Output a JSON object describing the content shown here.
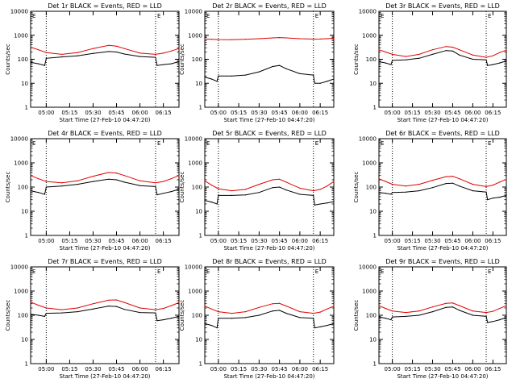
{
  "colors": {
    "events": "#000000",
    "lld": "#e00000",
    "background": "#ffffff"
  },
  "chart_data": [
    {
      "type": "line",
      "title": "Det 1r BLACK = Events, RED = LLD",
      "xlabel": "Start Time (27-Feb-10 04:47:20)",
      "ylabel": "Counts/sec",
      "yscale": "log",
      "ylim": [
        1,
        10000
      ],
      "xlim": [
        "04:50",
        "06:25"
      ],
      "x_ticks": [
        "05:00",
        "05:15",
        "05:30",
        "05:45",
        "06:00",
        "06:15"
      ],
      "y_ticks": [
        "1",
        "10",
        "100",
        "1000",
        "10000"
      ],
      "vlines": [
        "05:00",
        "06:10"
      ],
      "corner_marks": [
        "E",
        "E"
      ],
      "series": [
        {
          "color": "black",
          "x": [
            "04:50",
            "04:55",
            "04:59",
            "05:00",
            "05:10",
            "05:20",
            "05:30",
            "05:40",
            "05:45",
            "05:50",
            "06:00",
            "06:10",
            "06:11",
            "06:15",
            "06:20",
            "06:25"
          ],
          "values": [
            75,
            65,
            55,
            110,
            125,
            140,
            175,
            210,
            200,
            165,
            130,
            120,
            55,
            60,
            65,
            80
          ]
        },
        {
          "color": "red",
          "x": [
            "04:50",
            "04:55",
            "05:00",
            "05:10",
            "05:20",
            "05:30",
            "05:40",
            "05:45",
            "05:50",
            "06:00",
            "06:10",
            "06:15",
            "06:20",
            "06:25"
          ],
          "values": [
            320,
            250,
            190,
            160,
            190,
            280,
            380,
            350,
            280,
            180,
            160,
            180,
            220,
            280
          ]
        }
      ]
    },
    {
      "type": "line",
      "title": "Det 2r BLACK = Events, RED = LLD",
      "xlabel": "Start Time (27-Feb-10 04:47:20)",
      "ylabel": "Counts/sec",
      "yscale": "log",
      "ylim": [
        1,
        10000
      ],
      "xlim": [
        "04:50",
        "06:25"
      ],
      "x_ticks": [
        "05:00",
        "05:15",
        "05:30",
        "05:45",
        "06:00",
        "06:15"
      ],
      "y_ticks": [
        "1",
        "10",
        "100",
        "1000",
        "10000"
      ],
      "vlines": [
        "05:00",
        "06:10"
      ],
      "corner_marks": [
        "E",
        "E"
      ],
      "series": [
        {
          "color": "black",
          "x": [
            "04:50",
            "04:55",
            "04:59",
            "05:00",
            "05:10",
            "05:20",
            "05:30",
            "05:40",
            "05:45",
            "05:50",
            "06:00",
            "06:10",
            "06:11",
            "06:15",
            "06:20",
            "06:25"
          ],
          "values": [
            18,
            15,
            12,
            20,
            20,
            22,
            30,
            50,
            55,
            40,
            25,
            22,
            10,
            10,
            12,
            15
          ]
        },
        {
          "color": "red",
          "x": [
            "04:50",
            "04:55",
            "05:00",
            "05:10",
            "05:20",
            "05:30",
            "05:40",
            "05:45",
            "05:50",
            "06:00",
            "06:10",
            "06:15",
            "06:20",
            "06:25"
          ],
          "values": [
            700,
            680,
            660,
            650,
            680,
            720,
            780,
            800,
            780,
            720,
            690,
            700,
            720,
            750
          ]
        }
      ]
    },
    {
      "type": "line",
      "title": "Det 3r BLACK = Events, RED = LLD",
      "xlabel": "Start Time (27-Feb-10 04:47:20)",
      "ylabel": "Counts/sec",
      "yscale": "log",
      "ylim": [
        1,
        10000
      ],
      "xlim": [
        "04:50",
        "06:25"
      ],
      "x_ticks": [
        "05:00",
        "05:15",
        "05:30",
        "05:45",
        "06:00",
        "06:15"
      ],
      "y_ticks": [
        "1",
        "10",
        "100",
        "1000",
        "10000"
      ],
      "vlines": [
        "05:00",
        "06:10"
      ],
      "corner_marks": [
        "E",
        "E"
      ],
      "series": [
        {
          "color": "black",
          "x": [
            "04:50",
            "04:55",
            "04:59",
            "05:00",
            "05:10",
            "05:20",
            "05:30",
            "05:40",
            "05:45",
            "05:50",
            "06:00",
            "06:10",
            "06:11",
            "06:15",
            "06:20",
            "06:25"
          ],
          "values": [
            80,
            70,
            60,
            90,
            95,
            110,
            160,
            230,
            220,
            150,
            100,
            95,
            55,
            60,
            70,
            85
          ]
        },
        {
          "color": "red",
          "x": [
            "04:50",
            "04:55",
            "05:00",
            "05:10",
            "05:20",
            "05:30",
            "05:40",
            "05:45",
            "05:50",
            "06:00",
            "06:10",
            "06:15",
            "06:20",
            "06:25"
          ],
          "values": [
            250,
            200,
            160,
            130,
            160,
            250,
            340,
            320,
            250,
            150,
            120,
            140,
            190,
            240
          ]
        }
      ]
    },
    {
      "type": "line",
      "title": "Det 4r BLACK = Events, RED = LLD",
      "xlabel": "Start Time (27-Feb-10 04:47:20)",
      "ylabel": "Counts/sec",
      "yscale": "log",
      "ylim": [
        1,
        10000
      ],
      "xlim": [
        "04:50",
        "06:25"
      ],
      "x_ticks": [
        "05:00",
        "05:15",
        "05:30",
        "05:45",
        "06:00",
        "06:15"
      ],
      "y_ticks": [
        "1",
        "10",
        "100",
        "1000",
        "10000"
      ],
      "vlines": [
        "05:00",
        "06:10"
      ],
      "corner_marks": [
        "E",
        "E"
      ],
      "series": [
        {
          "color": "black",
          "x": [
            "04:50",
            "04:55",
            "04:59",
            "05:00",
            "05:10",
            "05:20",
            "05:30",
            "05:40",
            "05:45",
            "05:50",
            "06:00",
            "06:10",
            "06:11",
            "06:15",
            "06:20",
            "06:25"
          ],
          "values": [
            70,
            60,
            50,
            100,
            110,
            130,
            170,
            210,
            200,
            160,
            115,
            105,
            48,
            55,
            65,
            80
          ]
        },
        {
          "color": "red",
          "x": [
            "04:50",
            "04:55",
            "05:00",
            "05:10",
            "05:20",
            "05:30",
            "05:40",
            "05:45",
            "05:50",
            "06:00",
            "06:10",
            "06:15",
            "06:20",
            "06:25"
          ],
          "values": [
            300,
            220,
            170,
            150,
            180,
            280,
            400,
            380,
            300,
            180,
            150,
            170,
            220,
            300
          ]
        }
      ]
    },
    {
      "type": "line",
      "title": "Det 5r BLACK = Events, RED = LLD",
      "xlabel": "Start Time (27-Feb-10 04:47:20)",
      "ylabel": "Counts/sec",
      "yscale": "log",
      "ylim": [
        1,
        10000
      ],
      "xlim": [
        "04:50",
        "06:25"
      ],
      "x_ticks": [
        "05:00",
        "05:15",
        "05:30",
        "05:45",
        "06:00",
        "06:15"
      ],
      "y_ticks": [
        "1",
        "10",
        "100",
        "1000",
        "10000"
      ],
      "vlines": [
        "05:00",
        "06:10"
      ],
      "corner_marks": [
        "E",
        "E"
      ],
      "series": [
        {
          "color": "black",
          "x": [
            "04:50",
            "04:55",
            "04:59",
            "05:00",
            "05:10",
            "05:20",
            "05:30",
            "05:40",
            "05:45",
            "05:50",
            "06:00",
            "06:10",
            "06:11",
            "06:15",
            "06:20",
            "06:25"
          ],
          "values": [
            28,
            24,
            20,
            45,
            45,
            47,
            60,
            95,
            100,
            75,
            50,
            45,
            18,
            20,
            22,
            25
          ]
        },
        {
          "color": "red",
          "x": [
            "04:50",
            "04:55",
            "05:00",
            "05:10",
            "05:20",
            "05:30",
            "05:40",
            "05:45",
            "05:50",
            "06:00",
            "06:10",
            "06:15",
            "06:20",
            "06:25"
          ],
          "values": [
            180,
            120,
            85,
            70,
            80,
            130,
            200,
            210,
            160,
            90,
            70,
            80,
            110,
            170
          ]
        }
      ]
    },
    {
      "type": "line",
      "title": "Det 6r BLACK = Events, RED = LLD",
      "xlabel": "Start Time (27-Feb-10 04:47:20)",
      "ylabel": "Counts/sec",
      "yscale": "log",
      "ylim": [
        1,
        10000
      ],
      "xlim": [
        "04:50",
        "06:25"
      ],
      "x_ticks": [
        "05:00",
        "05:15",
        "05:30",
        "05:45",
        "06:00",
        "06:15"
      ],
      "y_ticks": [
        "1",
        "10",
        "100",
        "1000",
        "10000"
      ],
      "vlines": [
        "05:00",
        "06:10"
      ],
      "corner_marks": [
        "E",
        "E"
      ],
      "series": [
        {
          "color": "black",
          "x": [
            "04:50",
            "04:55",
            "04:59",
            "05:00",
            "05:10",
            "05:20",
            "05:30",
            "05:40",
            "05:45",
            "05:50",
            "06:00",
            "06:10",
            "06:11",
            "06:15",
            "06:20",
            "06:25"
          ],
          "values": [
            60,
            55,
            50,
            60,
            62,
            70,
            95,
            140,
            145,
            110,
            70,
            62,
            30,
            35,
            38,
            45
          ]
        },
        {
          "color": "red",
          "x": [
            "04:50",
            "04:55",
            "05:00",
            "05:10",
            "05:20",
            "05:30",
            "05:40",
            "05:45",
            "05:50",
            "06:00",
            "06:10",
            "06:15",
            "06:20",
            "06:25"
          ],
          "values": [
            220,
            170,
            130,
            110,
            130,
            190,
            270,
            280,
            220,
            130,
            105,
            120,
            160,
            210
          ]
        }
      ]
    },
    {
      "type": "line",
      "title": "Det 7r BLACK = Events, RED = LLD",
      "xlabel": "Start Time (27-Feb-10 04:47:20)",
      "ylabel": "Counts/sec",
      "yscale": "log",
      "ylim": [
        1,
        10000
      ],
      "xlim": [
        "04:50",
        "06:25"
      ],
      "x_ticks": [
        "05:00",
        "05:15",
        "05:30",
        "05:45",
        "06:00",
        "06:15"
      ],
      "y_ticks": [
        "1",
        "10",
        "100",
        "1000",
        "10000"
      ],
      "vlines": [
        "05:00",
        "06:10"
      ],
      "corner_marks": [
        "E",
        "E"
      ],
      "series": [
        {
          "color": "black",
          "x": [
            "04:50",
            "04:55",
            "04:59",
            "05:00",
            "05:10",
            "05:20",
            "05:30",
            "05:40",
            "05:45",
            "05:50",
            "06:00",
            "06:10",
            "06:11",
            "06:15",
            "06:20",
            "06:25"
          ],
          "values": [
            110,
            100,
            90,
            120,
            125,
            140,
            180,
            240,
            230,
            175,
            130,
            125,
            60,
            65,
            75,
            90
          ]
        },
        {
          "color": "red",
          "x": [
            "04:50",
            "04:55",
            "05:00",
            "05:10",
            "05:20",
            "05:30",
            "05:40",
            "05:45",
            "05:50",
            "06:00",
            "06:10",
            "06:15",
            "06:20",
            "06:25"
          ],
          "values": [
            350,
            260,
            200,
            170,
            200,
            300,
            420,
            430,
            340,
            200,
            170,
            190,
            250,
            330
          ]
        }
      ]
    },
    {
      "type": "line",
      "title": "Det 8r BLACK = Events, RED = LLD",
      "xlabel": "Start Time (27-Feb-10 04:47:20)",
      "ylabel": "Counts/sec",
      "yscale": "log",
      "ylim": [
        1,
        10000
      ],
      "xlim": [
        "04:50",
        "06:25"
      ],
      "x_ticks": [
        "05:00",
        "05:15",
        "05:30",
        "05:45",
        "06:00",
        "06:15"
      ],
      "y_ticks": [
        "1",
        "10",
        "100",
        "1000",
        "10000"
      ],
      "vlines": [
        "05:00",
        "06:10"
      ],
      "corner_marks": [
        "E",
        "E"
      ],
      "series": [
        {
          "color": "black",
          "x": [
            "04:50",
            "04:55",
            "04:59",
            "05:00",
            "05:10",
            "05:20",
            "05:30",
            "05:40",
            "05:45",
            "05:50",
            "06:00",
            "06:10",
            "06:11",
            "06:15",
            "06:20",
            "06:25"
          ],
          "values": [
            45,
            38,
            30,
            75,
            75,
            80,
            100,
            150,
            160,
            120,
            80,
            75,
            30,
            33,
            38,
            45
          ]
        },
        {
          "color": "red",
          "x": [
            "04:50",
            "04:55",
            "05:00",
            "05:10",
            "05:20",
            "05:30",
            "05:40",
            "05:45",
            "05:50",
            "06:00",
            "06:10",
            "06:15",
            "06:20",
            "06:25"
          ],
          "values": [
            240,
            180,
            140,
            120,
            140,
            210,
            300,
            310,
            240,
            140,
            120,
            135,
            180,
            240
          ]
        }
      ]
    },
    {
      "type": "line",
      "title": "Det 9r BLACK = Events, RED = LLD",
      "xlabel": "Start Time (27-Feb-10 04:47:20)",
      "ylabel": "Counts/sec",
      "yscale": "log",
      "ylim": [
        1,
        10000
      ],
      "xlim": [
        "04:50",
        "06:25"
      ],
      "x_ticks": [
        "05:00",
        "05:15",
        "05:30",
        "05:45",
        "06:00",
        "06:15"
      ],
      "y_ticks": [
        "1",
        "10",
        "100",
        "1000",
        "10000"
      ],
      "vlines": [
        "05:00",
        "06:10"
      ],
      "corner_marks": [
        "E",
        "E"
      ],
      "series": [
        {
          "color": "black",
          "x": [
            "04:50",
            "04:55",
            "04:59",
            "05:00",
            "05:10",
            "05:20",
            "05:30",
            "05:40",
            "05:45",
            "05:50",
            "06:00",
            "06:10",
            "06:11",
            "06:15",
            "06:20",
            "06:25"
          ],
          "values": [
            85,
            75,
            65,
            85,
            90,
            100,
            140,
            210,
            220,
            160,
            100,
            90,
            50,
            55,
            65,
            80
          ]
        },
        {
          "color": "red",
          "x": [
            "04:50",
            "04:55",
            "05:00",
            "05:10",
            "05:20",
            "05:30",
            "05:40",
            "05:45",
            "05:50",
            "06:00",
            "06:10",
            "06:15",
            "06:20",
            "06:25"
          ],
          "values": [
            250,
            190,
            150,
            130,
            150,
            220,
            310,
            320,
            250,
            150,
            130,
            145,
            190,
            250
          ]
        }
      ]
    }
  ]
}
